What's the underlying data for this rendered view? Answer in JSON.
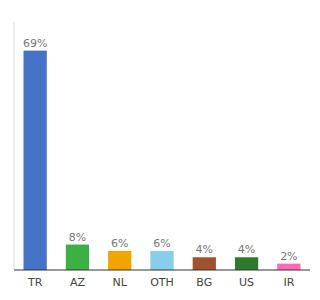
{
  "chart_data": {
    "type": "bar",
    "categories": [
      "TR",
      "AZ",
      "NL",
      "OTH",
      "BG",
      "US",
      "IR"
    ],
    "values": [
      69,
      8,
      6,
      6,
      4,
      4,
      2
    ],
    "value_labels": [
      "69%",
      "8%",
      "6%",
      "6%",
      "4%",
      "4%",
      "2%"
    ],
    "colors": [
      "#4472c4",
      "#3cb045",
      "#f0a500",
      "#87ceeb",
      "#a0522d",
      "#2d7a2d",
      "#ff69b4"
    ],
    "ylim": [
      0,
      78
    ],
    "data_labels": true,
    "tick_labels": "x",
    "grid": false
  }
}
